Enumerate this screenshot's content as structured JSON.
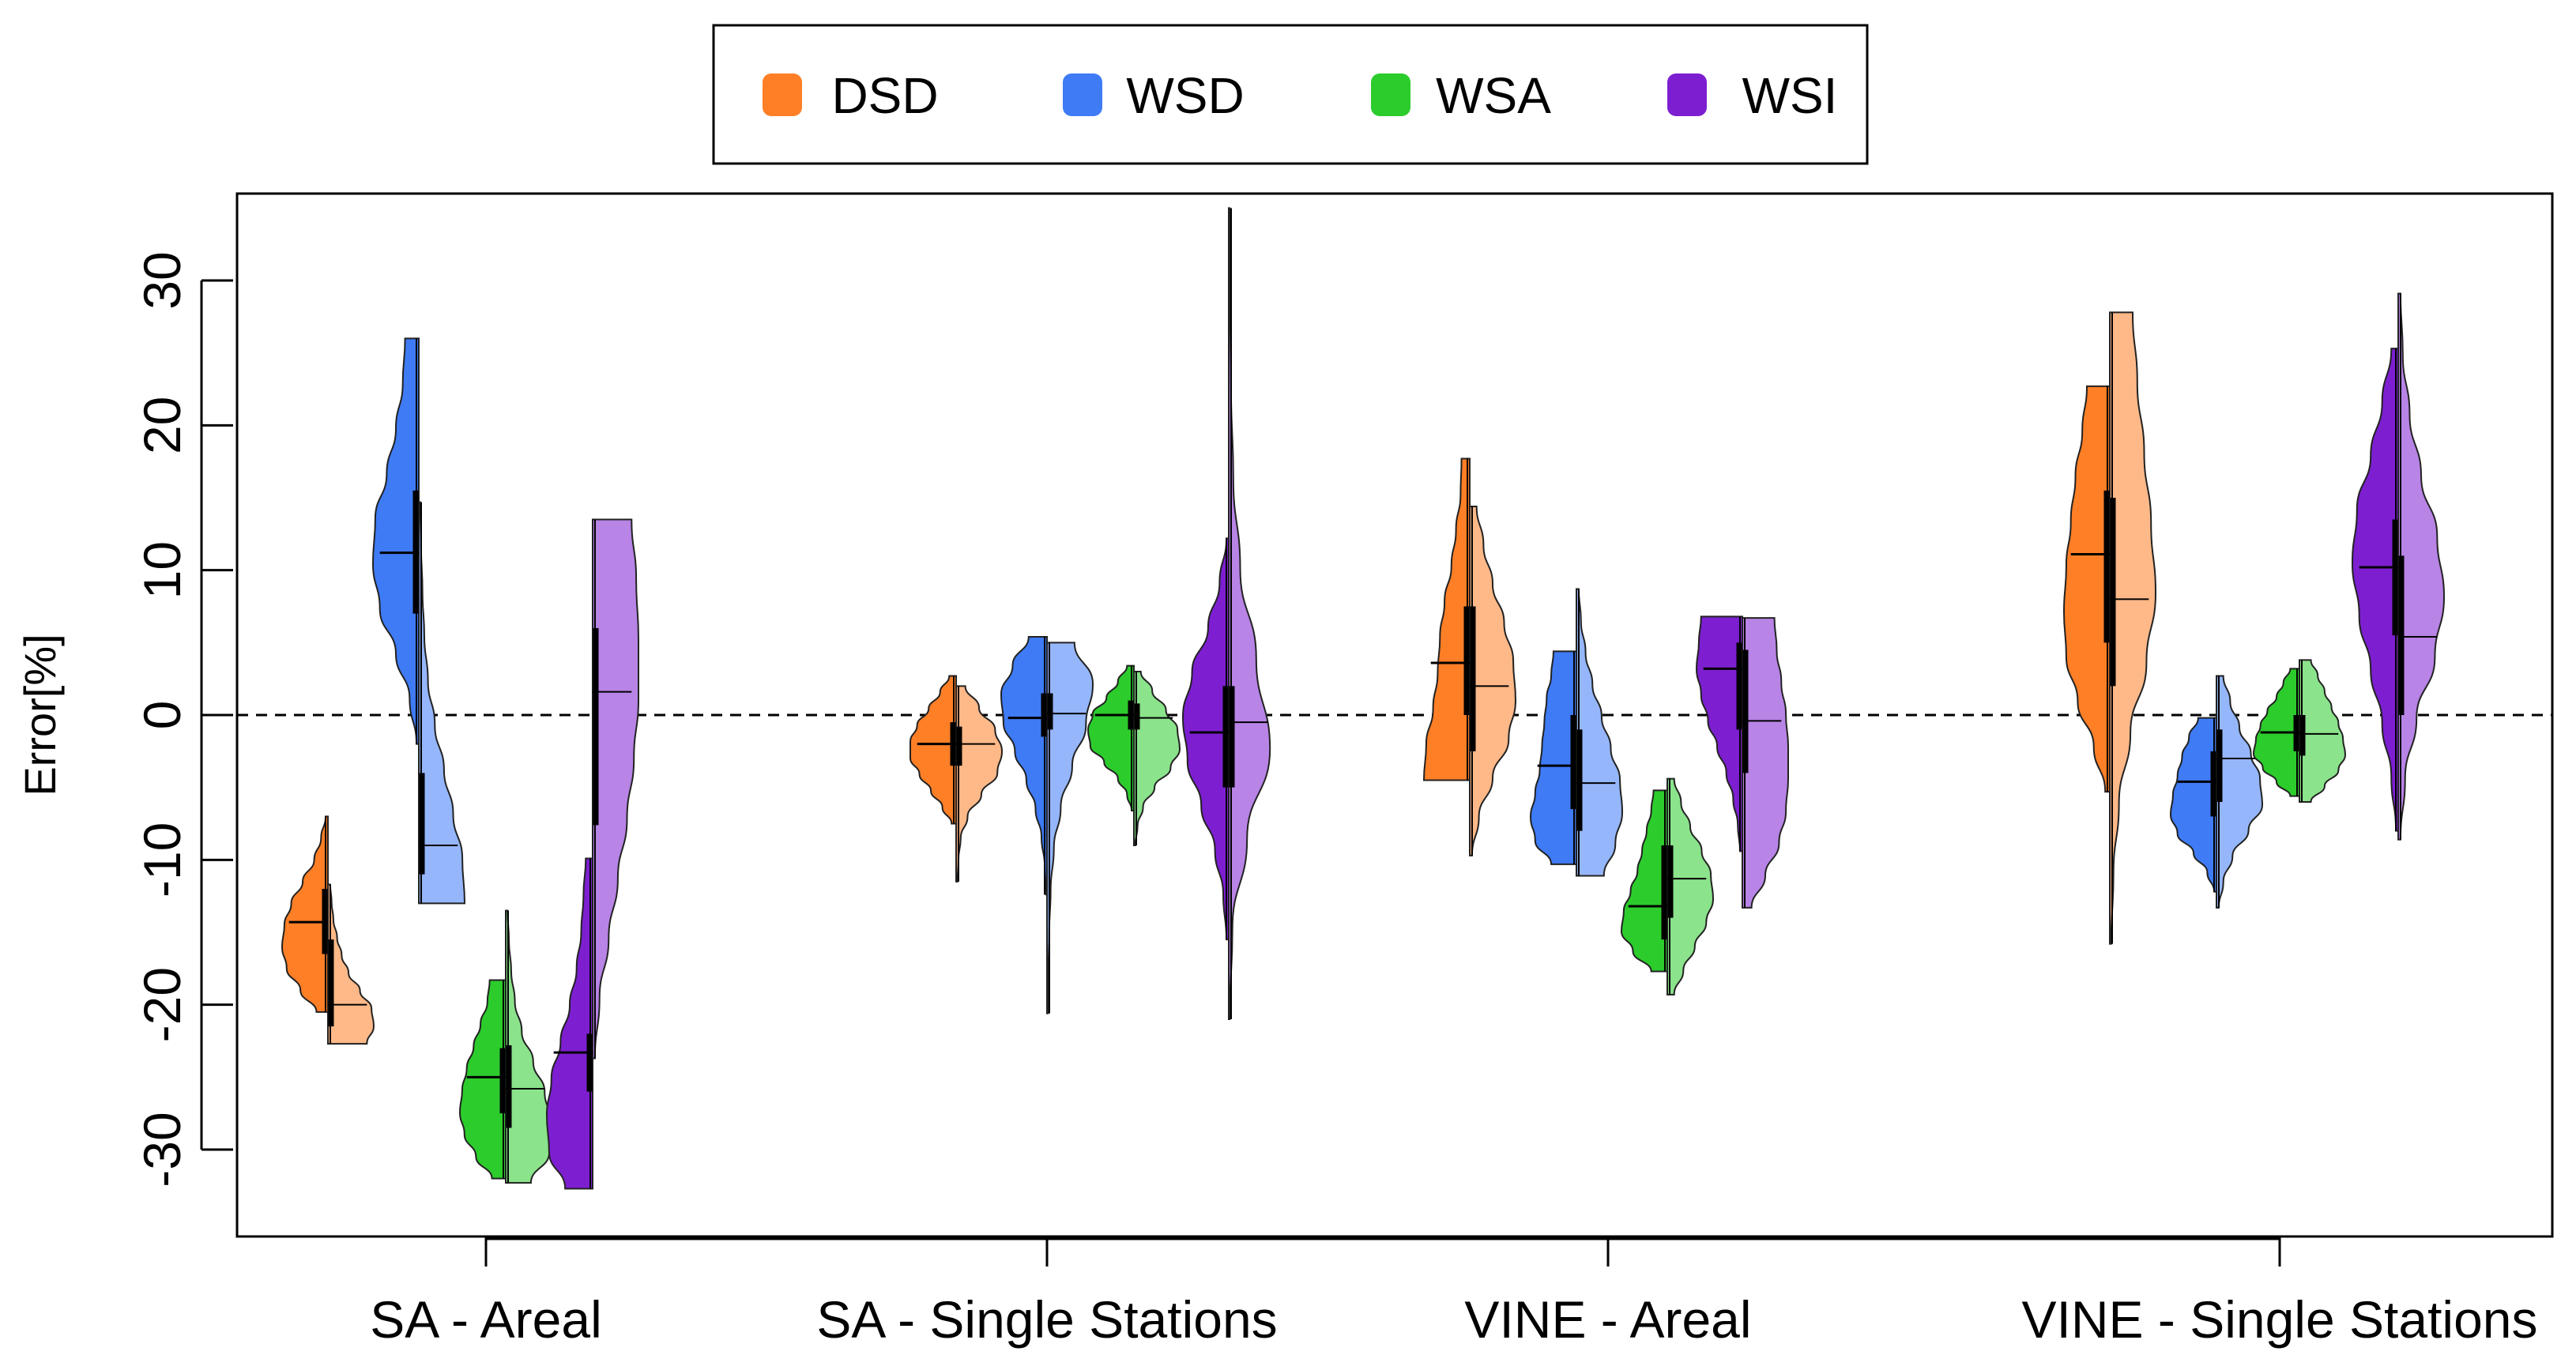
{
  "chart_data": {
    "type": "violin",
    "variant": "split-violin",
    "ylabel": "Error[%]",
    "ylim": [
      -36,
      36
    ],
    "yticks": [
      -30,
      -20,
      -10,
      0,
      10,
      20,
      30
    ],
    "reference_line": {
      "y": 0,
      "style": "dashed"
    },
    "grid": false,
    "legend": {
      "placement": "top-center",
      "entries": [
        {
          "name": "DSD",
          "color": "#FF7F27"
        },
        {
          "name": "WSD",
          "color": "#3F7BF5"
        },
        {
          "name": "WSA",
          "color": "#2CCC2C"
        },
        {
          "name": "WSI",
          "color": "#7D1FD1"
        }
      ]
    },
    "split_halves": {
      "left": "darker shade",
      "right": "lighter shade"
    },
    "categories": [
      "SA - Areal",
      "SA - Single Stations",
      "VINE - Areal",
      "VINE - Single Stations"
    ],
    "groups": [
      {
        "category": "SA - Areal",
        "violins": [
          {
            "series": "DSD",
            "color": "#FF7F27",
            "left": {
              "min": -20.5,
              "max": -7,
              "median": -14.3,
              "q1": -16.5,
              "q3": -12,
              "profile": [
                0.25,
                0.6,
                0.9,
                1,
                0.95,
                0.8,
                0.55,
                0.3,
                0.15,
                0.05
              ]
            },
            "right": {
              "min": -22.7,
              "max": -11.7,
              "median": -20,
              "q1": -21.5,
              "q3": -15.5,
              "profile": [
                0.85,
                1,
                0.95,
                0.7,
                0.45,
                0.3,
                0.2,
                0.12,
                0.08,
                0.05
              ]
            }
          },
          {
            "series": "WSD",
            "color": "#3F7BF5",
            "left": {
              "min": -2,
              "max": 26,
              "median": 11.2,
              "q1": 7,
              "q3": 15.5,
              "profile": [
                0.05,
                0.2,
                0.5,
                0.85,
                1,
                0.95,
                0.7,
                0.5,
                0.35,
                0.3
              ]
            },
            "right": {
              "min": -13,
              "max": 14.7,
              "median": -9,
              "q1": -11,
              "q3": -4,
              "profile": [
                1,
                0.95,
                0.75,
                0.55,
                0.35,
                0.2,
                0.12,
                0.08,
                0.05,
                0.03
              ]
            }
          },
          {
            "series": "WSA",
            "color": "#2CCC2C",
            "left": {
              "min": -32,
              "max": -18.3,
              "median": -25,
              "q1": -27.5,
              "q3": -23,
              "profile": [
                0.3,
                0.65,
                0.9,
                1,
                0.95,
                0.85,
                0.7,
                0.55,
                0.4,
                0.35
              ]
            },
            "right": {
              "min": -32.3,
              "max": -13.5,
              "median": -25.8,
              "q1": -28.5,
              "q3": -22.8,
              "profile": [
                0.55,
                0.95,
                1,
                0.85,
                0.6,
                0.35,
                0.2,
                0.12,
                0.07,
                0.04
              ]
            }
          },
          {
            "series": "WSI",
            "color": "#7D1FD1",
            "left": {
              "min": -32.7,
              "max": -9.9,
              "median": -23.3,
              "q1": -26,
              "q3": -22,
              "profile": [
                0.6,
                0.95,
                1,
                0.9,
                0.7,
                0.5,
                0.35,
                0.25,
                0.2,
                0.15
              ]
            },
            "right": {
              "min": -23.7,
              "max": 13.5,
              "median": 1.6,
              "q1": -7.6,
              "q3": 6,
              "profile": [
                0.05,
                0.15,
                0.35,
                0.55,
                0.75,
                0.9,
                1,
                1,
                0.95,
                0.85
              ]
            }
          }
        ]
      },
      {
        "category": "SA - Single Stations",
        "violins": [
          {
            "series": "DSD",
            "color": "#FF7F27",
            "left": {
              "min": -7.5,
              "max": 2.7,
              "median": -2,
              "q1": -3.5,
              "q3": -0.5,
              "profile": [
                0.1,
                0.3,
                0.55,
                0.8,
                1,
                1,
                0.85,
                0.6,
                0.35,
                0.15
              ]
            },
            "right": {
              "min": -11.5,
              "max": 2,
              "median": -2,
              "q1": -3.5,
              "q3": -0.8,
              "profile": [
                0.03,
                0.05,
                0.1,
                0.25,
                0.55,
                0.9,
                1,
                0.85,
                0.5,
                0.2
              ]
            }
          },
          {
            "series": "WSD",
            "color": "#3F7BF5",
            "left": {
              "min": -12.4,
              "max": 5.4,
              "median": -0.2,
              "q1": -1.5,
              "q3": 1.5,
              "profile": [
                0.02,
                0.05,
                0.12,
                0.25,
                0.45,
                0.7,
                0.95,
                1,
                0.75,
                0.4
              ]
            },
            "right": {
              "min": -20.6,
              "max": 5,
              "median": 0.1,
              "q1": -1,
              "q3": 1.5,
              "profile": [
                0.02,
                0.03,
                0.05,
                0.08,
                0.15,
                0.3,
                0.55,
                0.85,
                1,
                0.6
              ]
            }
          },
          {
            "series": "WSA",
            "color": "#2CCC2C",
            "left": {
              "min": -6.6,
              "max": 3.4,
              "median": 0,
              "q1": -1,
              "q3": 1,
              "profile": [
                0.05,
                0.15,
                0.35,
                0.65,
                0.95,
                1,
                0.9,
                0.6,
                0.35,
                0.15
              ]
            },
            "right": {
              "min": -9,
              "max": 3,
              "median": -0.2,
              "q1": -1,
              "q3": 0.8,
              "profile": [
                0.03,
                0.08,
                0.2,
                0.45,
                0.8,
                1,
                0.95,
                0.7,
                0.4,
                0.15
              ]
            }
          },
          {
            "series": "WSI",
            "color": "#7D1FD1",
            "left": {
              "min": -15.5,
              "max": 12.2,
              "median": -1.2,
              "q1": -5,
              "q3": 2,
              "profile": [
                0.05,
                0.12,
                0.3,
                0.6,
                0.9,
                1,
                0.8,
                0.45,
                0.2,
                0.05
              ]
            },
            "right": {
              "min": -21,
              "max": 35,
              "median": -0.5,
              "q1": -5,
              "q3": 2,
              "profile": [
                0.02,
                0.08,
                0.4,
                0.9,
                0.6,
                0.25,
                0.1,
                0.05,
                0.03,
                0.02
              ]
            }
          }
        ]
      },
      {
        "category": "VINE - Areal",
        "violins": [
          {
            "series": "DSD",
            "color": "#FF7F27",
            "left": {
              "min": -4.5,
              "max": 17.7,
              "median": 3.6,
              "q1": 0,
              "q3": 7.5,
              "profile": [
                1,
                0.95,
                0.8,
                0.7,
                0.65,
                0.55,
                0.4,
                0.3,
                0.2,
                0.18
              ]
            },
            "right": {
              "min": -9.7,
              "max": 14.4,
              "median": 2,
              "q1": -2.5,
              "q3": 7.5,
              "profile": [
                0.05,
                0.2,
                0.5,
                0.85,
                1,
                0.95,
                0.75,
                0.5,
                0.3,
                0.15
              ]
            }
          },
          {
            "series": "WSD",
            "color": "#3F7BF5",
            "left": {
              "min": -10.3,
              "max": 4.4,
              "median": -3.5,
              "q1": -6.5,
              "q3": 0,
              "profile": [
                0.55,
                0.9,
                1,
                0.9,
                0.8,
                0.75,
                0.7,
                0.65,
                0.55,
                0.5
              ]
            },
            "right": {
              "min": -11.1,
              "max": 8.7,
              "median": -4.7,
              "q1": -8,
              "q3": -1,
              "profile": [
                0.6,
                0.85,
                1,
                0.95,
                0.75,
                0.55,
                0.35,
                0.2,
                0.1,
                0.05
              ]
            }
          },
          {
            "series": "WSA",
            "color": "#2CCC2C",
            "left": {
              "min": -17.7,
              "max": -5.2,
              "median": -13.2,
              "q1": -15.5,
              "q3": -9,
              "profile": [
                0.35,
                0.75,
                1,
                0.95,
                0.8,
                0.65,
                0.55,
                0.45,
                0.35,
                0.3
              ]
            },
            "right": {
              "min": -19.3,
              "max": -4.4,
              "median": -11.3,
              "q1": -14,
              "q3": -9,
              "profile": [
                0.15,
                0.35,
                0.6,
                0.85,
                1,
                0.95,
                0.75,
                0.5,
                0.3,
                0.15
              ]
            }
          },
          {
            "series": "WSI",
            "color": "#7D1FD1",
            "left": {
              "min": -9.4,
              "max": 6.8,
              "median": 3.2,
              "q1": -1,
              "q3": 5,
              "profile": [
                0.05,
                0.1,
                0.2,
                0.35,
                0.55,
                0.75,
                0.9,
                1,
                0.95,
                0.9
              ]
            },
            "right": {
              "min": -13.3,
              "max": 6.7,
              "median": -0.4,
              "q1": -4,
              "q3": 4.5,
              "profile": [
                0.2,
                0.5,
                0.8,
                0.95,
                1,
                1,
                0.95,
                0.85,
                0.75,
                0.7
              ]
            }
          }
        ]
      },
      {
        "category": "VINE - Single Stations",
        "violins": [
          {
            "series": "DSD",
            "color": "#FF7F27",
            "left": {
              "min": -5.3,
              "max": 22.7,
              "median": 11.1,
              "q1": 5,
              "q3": 15.5,
              "profile": [
                0.1,
                0.35,
                0.7,
                0.95,
                1,
                0.95,
                0.85,
                0.75,
                0.6,
                0.5
              ]
            },
            "right": {
              "min": -15.8,
              "max": 27.8,
              "median": 8,
              "q1": 2,
              "q3": 15,
              "profile": [
                0.03,
                0.08,
                0.2,
                0.45,
                0.8,
                1,
                0.9,
                0.75,
                0.6,
                0.5
              ]
            }
          },
          {
            "series": "WSD",
            "color": "#3F7BF5",
            "left": {
              "min": -12.2,
              "max": -0.2,
              "median": -4.6,
              "q1": -7,
              "q3": -2.5,
              "profile": [
                0.05,
                0.2,
                0.5,
                0.85,
                1,
                0.95,
                0.85,
                0.75,
                0.6,
                0.4
              ]
            },
            "right": {
              "min": -13.3,
              "max": 2.7,
              "median": -3,
              "q1": -6,
              "q3": -1,
              "profile": [
                0.05,
                0.15,
                0.35,
                0.7,
                1,
                0.95,
                0.75,
                0.5,
                0.3,
                0.15
              ]
            }
          },
          {
            "series": "WSA",
            "color": "#2CCC2C",
            "left": {
              "min": -5.6,
              "max": 3.2,
              "median": -1.2,
              "q1": -2.5,
              "q3": 0,
              "profile": [
                0.2,
                0.5,
                0.8,
                1,
                0.95,
                0.85,
                0.7,
                0.5,
                0.35,
                0.2
              ]
            },
            "right": {
              "min": -6,
              "max": 3.8,
              "median": -1.3,
              "q1": -2.8,
              "q3": 0,
              "profile": [
                0.25,
                0.55,
                0.85,
                1,
                0.95,
                0.85,
                0.7,
                0.55,
                0.4,
                0.25
              ]
            }
          },
          {
            "series": "WSI",
            "color": "#7D1FD1",
            "left": {
              "min": -8,
              "max": 25.3,
              "median": 10.2,
              "q1": 5.5,
              "q3": 13.5,
              "profile": [
                0.05,
                0.15,
                0.35,
                0.6,
                0.85,
                1,
                0.9,
                0.6,
                0.35,
                0.15
              ]
            },
            "right": {
              "min": -8.6,
              "max": 29.1,
              "median": 5.4,
              "q1": 0,
              "q3": 11,
              "profile": [
                0.05,
                0.15,
                0.4,
                0.8,
                1,
                0.85,
                0.5,
                0.25,
                0.1,
                0.05
              ]
            }
          }
        ]
      }
    ]
  }
}
